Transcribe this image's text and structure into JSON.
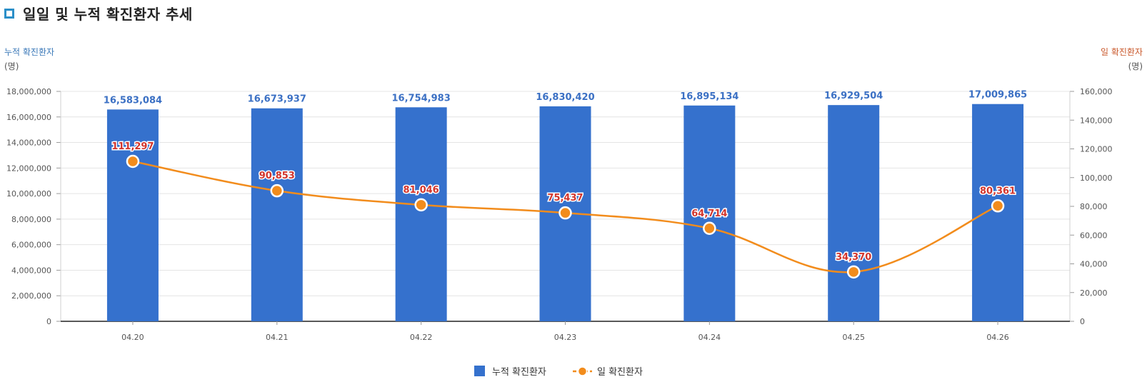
{
  "page_title": "일일 및 누적 확진환자 추세",
  "chart_data": {
    "type": "bar",
    "combo": "bar+line",
    "categories": [
      "04.20",
      "04.21",
      "04.22",
      "04.23",
      "04.24",
      "04.25",
      "04.26"
    ],
    "series": [
      {
        "name": "누적 확진환자",
        "type": "bar",
        "axis": "left",
        "color": "#3571cd",
        "values": [
          16583084,
          16673937,
          16754983,
          16830420,
          16895134,
          16929504,
          17009865
        ],
        "labels": [
          "16,583,084",
          "16,673,937",
          "16,754,983",
          "16,830,420",
          "16,895,134",
          "16,929,504",
          "17,009,865"
        ]
      },
      {
        "name": "일 확진환자",
        "type": "line",
        "axis": "right",
        "color": "#f28c1c",
        "values": [
          111297,
          90853,
          81046,
          75437,
          64714,
          34370,
          80361
        ],
        "labels": [
          "111,297",
          "90,853",
          "81,046",
          "75,437",
          "64,714",
          "34,370",
          "80,361"
        ]
      }
    ],
    "y_left": {
      "title": "누적 확진환자",
      "unit": "(명)",
      "range": [
        0,
        18000000
      ],
      "ticks": [
        0,
        2000000,
        4000000,
        6000000,
        8000000,
        10000000,
        12000000,
        14000000,
        16000000,
        18000000
      ],
      "tick_labels": [
        "0",
        "2,000,000",
        "4,000,000",
        "6,000,000",
        "8,000,000",
        "10,000,000",
        "12,000,000",
        "14,000,000",
        "16,000,000",
        "18,000,000"
      ]
    },
    "y_right": {
      "title": "일 확진환자",
      "unit": "(명)",
      "range": [
        0,
        160000
      ],
      "ticks": [
        0,
        20000,
        40000,
        60000,
        80000,
        100000,
        120000,
        140000,
        160000
      ],
      "tick_labels": [
        "0",
        "20,000",
        "40,000",
        "60,000",
        "80,000",
        "100,000",
        "120,000",
        "140,000",
        "160,000"
      ]
    },
    "grid": true,
    "legend": {
      "position": "bottom-center",
      "items": [
        "누적 확진환자",
        "일 확진환자"
      ]
    },
    "colors": {
      "left_axis_title": "#3a78b8",
      "right_axis_title": "#c9582b",
      "bar_label": "#3b70c4",
      "line_label": "#d2342b"
    }
  }
}
